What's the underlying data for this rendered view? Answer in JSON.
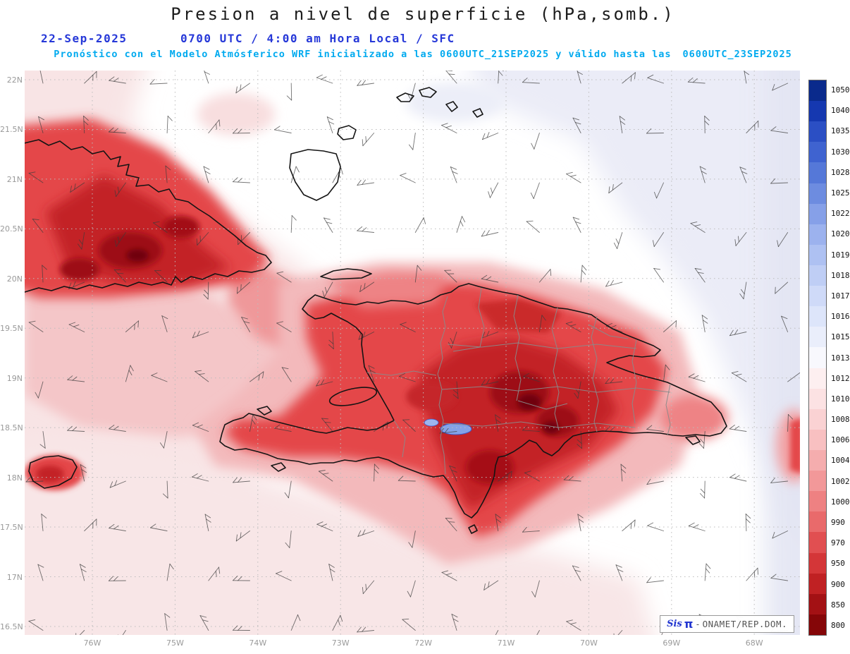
{
  "title": "Presion a nivel de superficie (hPa,somb.)",
  "header": {
    "date": "22-Sep-2025",
    "time_line": "0700 UTC / 4:00 am Hora Local / SFC",
    "forecast_prefix": "Pronóstico con el Modelo Atmósferico WRF inicializado a las 0600UTC_21SEP2025 y válido hasta las",
    "forecast_valid": "0600UTC_23SEP2025"
  },
  "map": {
    "lat_labels": [
      "22N",
      "21.5N",
      "21N",
      "20.5N",
      "20N",
      "19.5N",
      "19N",
      "18.5N",
      "18N",
      "17.5N",
      "17N",
      "16.5N"
    ],
    "lon_labels": [
      "76W",
      "75W",
      "74W",
      "73W",
      "72W",
      "71W",
      "70W",
      "69W",
      "68W"
    ]
  },
  "colorbar": {
    "unit": "hPa",
    "values": [
      1050,
      1040,
      1035,
      1030,
      1028,
      1025,
      1022,
      1020,
      1019,
      1018,
      1017,
      1016,
      1015,
      1013,
      1012,
      1010,
      1008,
      1006,
      1004,
      1002,
      1000,
      990,
      970,
      950,
      900,
      850,
      800
    ],
    "colors": [
      "#0a2a8c",
      "#1538b0",
      "#2b4fc4",
      "#3f63d0",
      "#5578d8",
      "#6d8ce0",
      "#86a0e8",
      "#9cb2ee",
      "#aec1f2",
      "#bfcef5",
      "#cfdaf8",
      "#dde5fa",
      "#eaeefb",
      "#f8f8fd",
      "#fdeff0",
      "#fce2e3",
      "#fad2d3",
      "#f8c0c1",
      "#f5adae",
      "#f29899",
      "#ee8182",
      "#e96a6b",
      "#e14f51",
      "#d43638",
      "#c02123",
      "#a31114",
      "#850608"
    ]
  },
  "wind_barbs": {
    "dx": 58.7,
    "dy": 70.5,
    "length": 24
  },
  "credit": {
    "brand": "Sis",
    "pi": "π",
    "sep": "-",
    "org": "ONAMET/REP.DOM."
  },
  "colors": {
    "header_blue": "#2638d8",
    "header_cyan": "#00aaef",
    "title_ink": "#1c1c1c",
    "coastline": "#141414",
    "province_border": "#8a8a8a",
    "grid": "#bcbcbc",
    "axis_label": "#9a9a9a",
    "low_pressure_dark_red": "#700207",
    "high_pressure_dark_blue": "#0a2a8c"
  }
}
